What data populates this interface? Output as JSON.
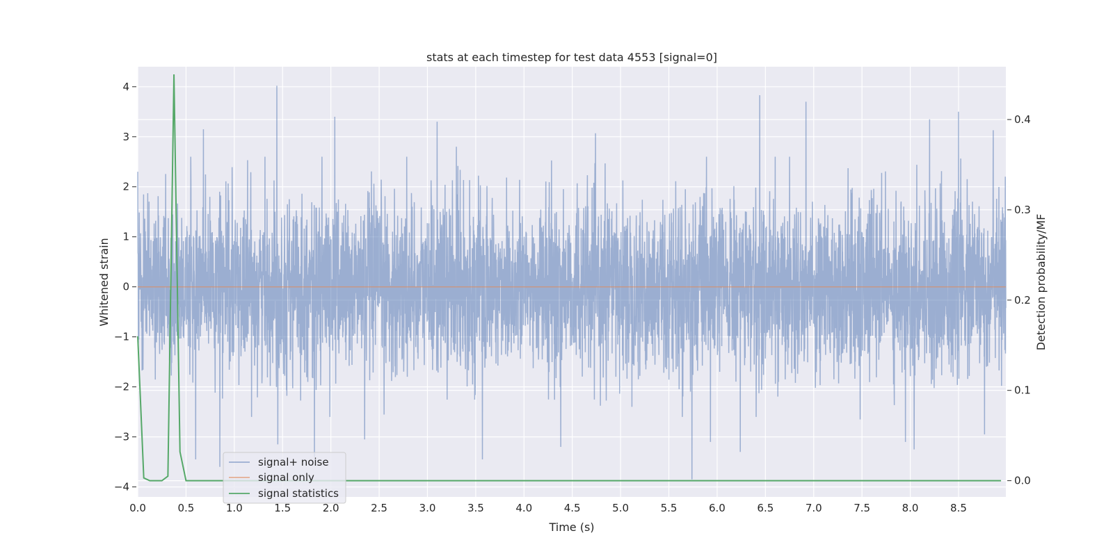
{
  "chart_data": {
    "type": "line",
    "title": "stats at each timestep for test data 4553 [signal=0]",
    "xlabel": "Time (s)",
    "ylabel_left": "Whitened strain",
    "ylabel_right": "Detection probability/MF",
    "xlim": [
      0.0,
      8.99
    ],
    "ylim_left": [
      -4.2,
      4.4
    ],
    "ylim_right": [
      -0.018,
      0.4585
    ],
    "x_ticks": [
      "0.0",
      "0.5",
      "1.0",
      "1.5",
      "2.0",
      "2.5",
      "3.0",
      "3.5",
      "4.0",
      "4.5",
      "5.0",
      "5.5",
      "6.0",
      "6.5",
      "7.0",
      "7.5",
      "8.0",
      "8.5"
    ],
    "y_ticks_left": [
      "4",
      "3",
      "2",
      "1",
      "0",
      "−1",
      "−2",
      "−3",
      "−4"
    ],
    "y_ticks_right": [
      "0.4",
      "0.3",
      "0.2",
      "0.1",
      "0.0"
    ],
    "grid": true,
    "legend_position": "lower-left",
    "series": [
      {
        "name": "signal+ noise",
        "axis": "left",
        "color": "#4c72b0",
        "description_values": {
          "kind": "dense noise trace",
          "spikes_up": [
            [
              0.0,
              2.3
            ],
            [
              0.68,
              3.15
            ],
            [
              0.55,
              2.6
            ],
            [
              1.44,
              4.02
            ],
            [
              2.04,
              3.4
            ],
            [
              3.1,
              3.3
            ],
            [
              3.3,
              2.8
            ],
            [
              4.74,
              3.07
            ],
            [
              6.44,
              3.83
            ],
            [
              6.92,
              3.7
            ],
            [
              8.2,
              3.35
            ],
            [
              8.5,
              3.5
            ],
            [
              8.86,
              3.13
            ]
          ],
          "spikes_down": [
            [
              0.6,
              -3.45
            ],
            [
              0.85,
              -3.6
            ],
            [
              1.45,
              -3.15
            ],
            [
              1.83,
              -3.4
            ],
            [
              2.35,
              -3.05
            ],
            [
              3.57,
              -3.45
            ],
            [
              4.38,
              -3.2
            ],
            [
              5.74,
              -3.85
            ],
            [
              5.93,
              -3.1
            ],
            [
              6.24,
              -3.3
            ],
            [
              7.48,
              -2.65
            ],
            [
              7.95,
              -3.1
            ],
            [
              8.04,
              -3.25
            ],
            [
              8.77,
              -2.95
            ]
          ]
        }
      },
      {
        "name": "signal only",
        "axis": "left",
        "color": "#dd8452",
        "x": [
          0.0,
          8.99
        ],
        "y": [
          0.0,
          0.0
        ]
      },
      {
        "name": "signal statistics",
        "axis": "right",
        "color": "#55a868",
        "x": [
          0.0,
          0.0625,
          0.125,
          0.1875,
          0.25,
          0.3125,
          0.375,
          0.4375,
          0.5,
          0.5625,
          0.625,
          1.0,
          2.0,
          3.0,
          4.0,
          5.0,
          6.0,
          7.0,
          8.0,
          8.94
        ],
        "y": [
          0.16,
          0.003,
          0.0,
          0.0,
          0.0,
          0.005,
          0.45,
          0.032,
          0.0,
          0.0,
          0.0,
          0.0,
          0.0,
          0.0,
          0.0,
          0.0,
          0.0,
          0.0,
          0.0,
          0.0
        ]
      }
    ]
  }
}
